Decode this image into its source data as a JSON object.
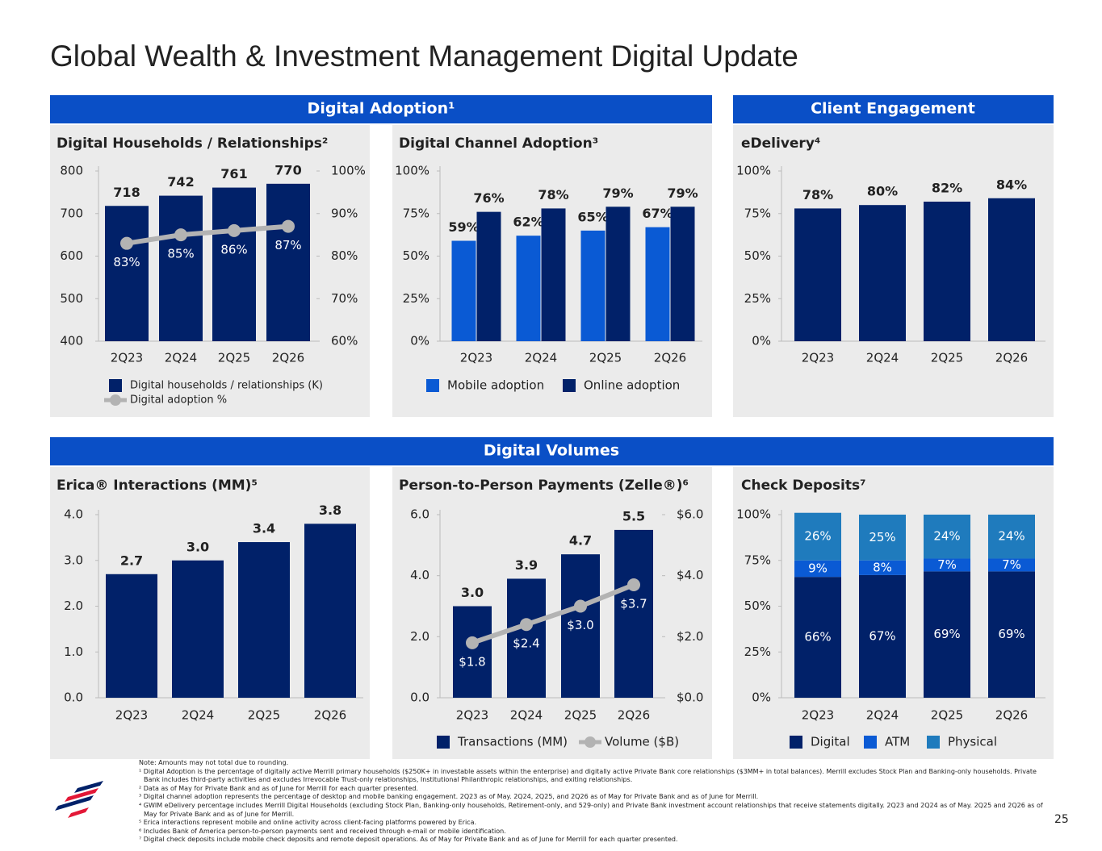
{
  "title": "Global Wealth & Investment Management Digital Update",
  "sections": [
    "Digital Adoption¹",
    "Client Engagement",
    "Digital Volumes"
  ],
  "chart_data": [
    {
      "type": "combo",
      "title": "Digital Households / Relationships²",
      "categories": [
        "2Q23",
        "2Q24",
        "2Q25",
        "2Q26"
      ],
      "series": [
        {
          "name": "Digital households / relationships (K)",
          "type": "bar",
          "color": "#012169",
          "values": [
            718,
            742,
            761,
            770
          ]
        },
        {
          "name": "Digital adoption %",
          "type": "line",
          "axis": "y2",
          "color": "#b3b3b3",
          "values": [
            83,
            85,
            86,
            87
          ],
          "value_labels": [
            "83%",
            "85%",
            "86%",
            "87%"
          ]
        }
      ],
      "ylim": [
        400,
        800
      ],
      "yticks": [
        400,
        500,
        600,
        700,
        800
      ],
      "y2lim": [
        60,
        100
      ],
      "y2ticks": [
        {
          "value": 60,
          "label": "60%"
        },
        {
          "value": 70,
          "label": "70%"
        },
        {
          "value": 80,
          "label": "80%"
        },
        {
          "value": 90,
          "label": "90%"
        },
        {
          "value": 100,
          "label": "100%"
        }
      ],
      "grid": false
    },
    {
      "type": "grouped_bar",
      "title": "Digital Channel Adoption³",
      "categories": [
        "2Q23",
        "2Q24",
        "2Q25",
        "2Q26"
      ],
      "series": [
        {
          "name": "Mobile adoption",
          "color": "#0a5ad4",
          "values": [
            59,
            62,
            65,
            67
          ],
          "value_labels": [
            "59%",
            "62%",
            "65%",
            "67%"
          ]
        },
        {
          "name": "Online adoption",
          "color": "#012169",
          "values": [
            76,
            78,
            79,
            79
          ],
          "value_labels": [
            "76%",
            "78%",
            "79%",
            "79%"
          ]
        }
      ],
      "ylim": [
        0,
        100
      ],
      "yticks": [
        {
          "value": 0,
          "label": "0%"
        },
        {
          "value": 25,
          "label": "25%"
        },
        {
          "value": 50,
          "label": "50%"
        },
        {
          "value": 75,
          "label": "75%"
        },
        {
          "value": 100,
          "label": "100%"
        }
      ],
      "grid": false
    },
    {
      "type": "bar",
      "title": "eDelivery⁴",
      "categories": [
        "2Q23",
        "2Q24",
        "2Q25",
        "2Q26"
      ],
      "values": [
        78,
        80,
        82,
        84
      ],
      "value_labels": [
        "78%",
        "80%",
        "82%",
        "84%"
      ],
      "color": "#012169",
      "ylim": [
        0,
        100
      ],
      "yticks": [
        {
          "value": 0,
          "label": "0%"
        },
        {
          "value": 25,
          "label": "25%"
        },
        {
          "value": 50,
          "label": "50%"
        },
        {
          "value": 75,
          "label": "75%"
        },
        {
          "value": 100,
          "label": "100%"
        }
      ],
      "grid": false
    },
    {
      "type": "bar",
      "title": "Erica® Interactions (MM)⁵",
      "categories": [
        "2Q23",
        "2Q24",
        "2Q25",
        "2Q26"
      ],
      "values": [
        2.7,
        3.0,
        3.4,
        3.8
      ],
      "value_labels": [
        "2.7",
        "3.0",
        "3.4",
        "3.8"
      ],
      "color": "#012169",
      "ylim": [
        0,
        4
      ],
      "yticks": [
        {
          "value": 0,
          "label": "0.0"
        },
        {
          "value": 1,
          "label": "1.0"
        },
        {
          "value": 2,
          "label": "2.0"
        },
        {
          "value": 3,
          "label": "3.0"
        },
        {
          "value": 4,
          "label": "4.0"
        }
      ],
      "grid": false
    },
    {
      "type": "combo",
      "title": "Person-to-Person Payments (Zelle®)⁶",
      "categories": [
        "2Q23",
        "2Q24",
        "2Q25",
        "2Q26"
      ],
      "series": [
        {
          "name": "Transactions (MM)",
          "type": "bar",
          "color": "#012169",
          "values": [
            3.0,
            3.9,
            4.7,
            5.5
          ],
          "value_labels": [
            "3.0",
            "3.9",
            "4.7",
            "5.5"
          ]
        },
        {
          "name": "Volume ($B)",
          "type": "line",
          "axis": "y2",
          "color": "#b3b3b3",
          "values": [
            1.8,
            2.4,
            3.0,
            3.7
          ],
          "value_labels": [
            "$1.8",
            "$2.4",
            "$3.0",
            "$3.7"
          ]
        }
      ],
      "ylim": [
        0,
        6
      ],
      "yticks": [
        {
          "value": 0,
          "label": "0.0"
        },
        {
          "value": 2,
          "label": "2.0"
        },
        {
          "value": 4,
          "label": "4.0"
        },
        {
          "value": 6,
          "label": "6.0"
        }
      ],
      "y2lim": [
        0,
        6
      ],
      "y2ticks": [
        {
          "value": 0,
          "label": "$0.0"
        },
        {
          "value": 2,
          "label": "$2.0"
        },
        {
          "value": 4,
          "label": "$4.0"
        },
        {
          "value": 6,
          "label": "$6.0"
        }
      ],
      "grid": false
    },
    {
      "type": "stacked_bar",
      "title": "Check Deposits⁷",
      "categories": [
        "2Q23",
        "2Q24",
        "2Q25",
        "2Q26"
      ],
      "series": [
        {
          "name": "Digital",
          "color": "#012169",
          "values": [
            66,
            67,
            69,
            69
          ],
          "value_labels": [
            "66%",
            "67%",
            "69%",
            "69%"
          ]
        },
        {
          "name": "ATM",
          "color": "#0a5ad4",
          "values": [
            9,
            8,
            7,
            7
          ],
          "value_labels": [
            "9%",
            "8%",
            "7%",
            "7%"
          ]
        },
        {
          "name": "Physical",
          "color": "#1f7bbd",
          "values": [
            26,
            25,
            24,
            24
          ],
          "value_labels": [
            "26%",
            "25%",
            "24%",
            "24%"
          ]
        }
      ],
      "ylim": [
        0,
        100
      ],
      "yticks": [
        {
          "value": 0,
          "label": "0%"
        },
        {
          "value": 25,
          "label": "25%"
        },
        {
          "value": 50,
          "label": "50%"
        },
        {
          "value": 75,
          "label": "75%"
        },
        {
          "value": 100,
          "label": "100%"
        }
      ],
      "grid": false
    }
  ],
  "footnotes": [
    "Note: Amounts may not total due to rounding.",
    "¹ Digital Adoption is the percentage of digitally active Merrill primary households ($250K+ in investable assets within the enterprise) and digitally active Private Bank core relationships ($3MM+ in total balances). Merrill excludes Stock Plan and Banking-only households. Private Bank includes third-party activities and excludes Irrevocable Trust-only relationships, Institutional Philanthropic relationships, and exiting relationships.",
    "² Data as of May for Private Bank and as of June for Merrill for each quarter presented.",
    "³ Digital channel adoption represents the percentage of desktop and mobile banking engagement. 2Q23 as of May. 2Q24, 2Q25, and 2Q26 as of May for Private Bank and as of June for Merrill.",
    "⁴ GWIM eDelivery percentage includes Merrill Digital Households (excluding Stock Plan, Banking-only households, Retirement-only, and 529-only) and Private Bank investment account relationships that receive statements digitally. 2Q23 and 2Q24 as of May. 2Q25 and 2Q26 as of May for Private Bank and as of June for Merrill.",
    "⁵ Erica interactions represent mobile and online activity across client-facing platforms powered by Erica.",
    "⁶ Includes Bank of America person-to-person payments sent and received through e-mail or mobile identification.",
    "⁷ Digital check deposits include mobile check deposits and remote deposit operations. As of May for Private Bank and as of June for Merrill for each quarter presented."
  ],
  "page_number": "25"
}
